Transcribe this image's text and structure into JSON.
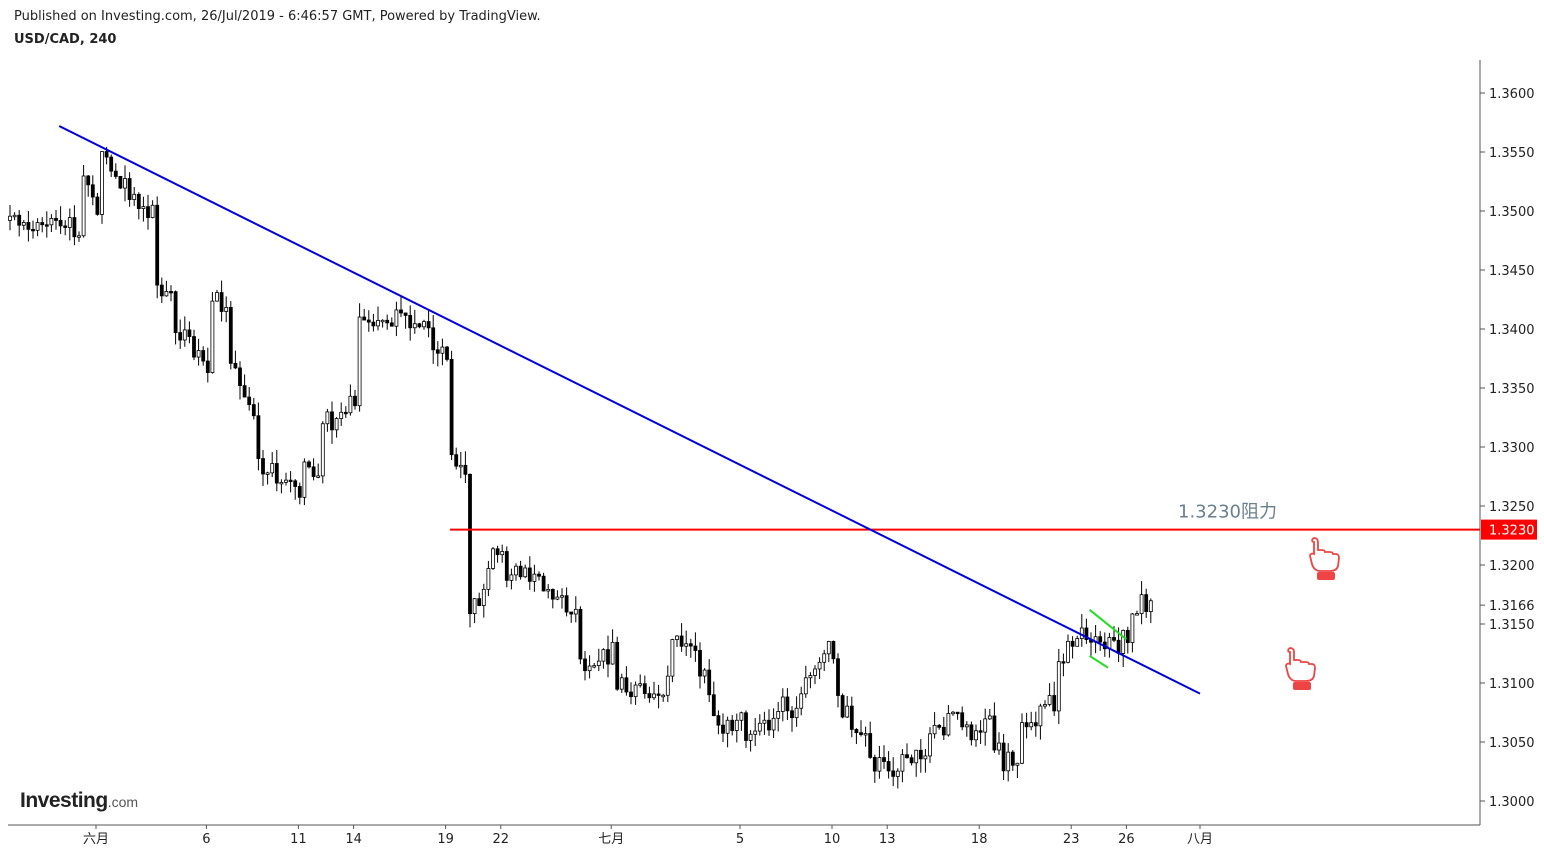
{
  "header": {
    "published": "Published on Investing.com, 26/Jul/2019 - 6:46:57 GMT, Powered by TradingView.",
    "symbol": "USD/CAD, 240"
  },
  "brand": {
    "name": "Investing",
    "suffix": ".com"
  },
  "chart_data": {
    "type": "candlestick",
    "y_axis": {
      "range": [
        1.2965,
        1.3645
      ],
      "ticks": [
        "1.3600",
        "1.3550",
        "1.3500",
        "1.3450",
        "1.3400",
        "1.3350",
        "1.3300",
        "1.3250",
        "1.3200",
        "1.3150",
        "1.3100",
        "1.3050",
        "1.3000"
      ]
    },
    "x_axis": {
      "ticks": [
        "六月",
        "6",
        "11",
        "14",
        "19",
        "22",
        "七月",
        "5",
        "10",
        "13",
        "18",
        "23",
        "26",
        "八月"
      ]
    },
    "last_price": "1.3166",
    "resistance": {
      "level": "1.3230",
      "label": "1.3230阻力",
      "color": "#ff0000"
    },
    "colors": {
      "trendline": "#0000e0",
      "resistance": "#ff0000",
      "pennant": "#22dd22",
      "hand_icon": "#ee4444",
      "candle_up": "#ffffff",
      "candle_down": "#000000"
    },
    "annotations": [
      {
        "type": "trendline",
        "from": [
          "2019-05-29",
          1.3572
        ],
        "to": [
          "2019-07-30",
          1.3091
        ]
      },
      {
        "type": "pennant-upper",
        "from": [
          "2019-07-24",
          1.3162
        ],
        "to": [
          "2019-07-26",
          1.3137
        ]
      },
      {
        "type": "pennant-lower",
        "from": [
          "2019-07-24",
          1.3123
        ],
        "to": [
          "2019-07-25",
          1.3113
        ]
      },
      {
        "type": "hand-icon",
        "near": [
          "2019-07-26",
          1.3198
        ]
      },
      {
        "type": "hand-icon",
        "near": [
          "2019-07-26",
          1.311
        ]
      }
    ],
    "path_anchors": [
      [
        "2019-05-30",
        1.3488
      ],
      [
        "2019-05-30",
        1.3535
      ],
      [
        "2019-05-31",
        1.3505
      ],
      [
        "2019-05-31",
        1.353
      ],
      [
        "2019-05-31",
        1.3565
      ],
      [
        "2019-06-01",
        1.353
      ],
      [
        "2019-06-03",
        1.35
      ],
      [
        "2019-06-03",
        1.3465
      ],
      [
        "2019-06-03",
        1.344
      ],
      [
        "2019-06-04",
        1.343
      ],
      [
        "2019-06-04",
        1.341
      ],
      [
        "2019-06-05",
        1.3385
      ],
      [
        "2019-06-06",
        1.337
      ],
      [
        "2019-06-06",
        1.3415
      ],
      [
        "2019-06-06",
        1.3425
      ],
      [
        "2019-06-07",
        1.342
      ],
      [
        "2019-06-07",
        1.339
      ],
      [
        "2019-06-07",
        1.3365
      ],
      [
        "2019-06-08",
        1.335
      ],
      [
        "2019-06-09",
        1.328
      ],
      [
        "2019-06-10",
        1.3275
      ],
      [
        "2019-06-10",
        1.327
      ],
      [
        "2019-06-11",
        1.3265
      ],
      [
        "2019-06-11",
        1.3255
      ],
      [
        "2019-06-11",
        1.3285
      ],
      [
        "2019-06-12",
        1.328
      ],
      [
        "2019-06-12",
        1.329
      ],
      [
        "2019-06-12",
        1.3325
      ],
      [
        "2019-06-13",
        1.332
      ],
      [
        "2019-06-13",
        1.331
      ],
      [
        "2019-06-13",
        1.333
      ],
      [
        "2019-06-14",
        1.334
      ],
      [
        "2019-06-14",
        1.336
      ],
      [
        "2019-06-14",
        1.3415
      ],
      [
        "2019-06-15",
        1.341
      ],
      [
        "2019-06-16",
        1.341
      ],
      [
        "2019-06-17",
        1.3405
      ],
      [
        "2019-06-18",
        1.341
      ],
      [
        "2019-06-18",
        1.3425
      ],
      [
        "2019-06-18",
        1.3395
      ],
      [
        "2019-06-19",
        1.338
      ],
      [
        "2019-06-19",
        1.3375
      ],
      [
        "2019-06-19",
        1.329
      ],
      [
        "2019-06-20",
        1.327
      ],
      [
        "2019-06-20",
        1.3225
      ],
      [
        "2019-06-20",
        1.316
      ],
      [
        "2019-06-21",
        1.3175
      ],
      [
        "2019-06-21",
        1.3195
      ],
      [
        "2019-06-22",
        1.3215
      ],
      [
        "2019-06-22",
        1.3195
      ],
      [
        "2019-06-23",
        1.319
      ],
      [
        "2019-06-24",
        1.3185
      ],
      [
        "2019-06-24",
        1.3175
      ],
      [
        "2019-06-25",
        1.317
      ],
      [
        "2019-06-26",
        1.316
      ],
      [
        "2019-06-26",
        1.3115
      ],
      [
        "2019-06-27",
        1.3125
      ],
      [
        "2019-06-28",
        1.3125
      ],
      [
        "2019-06-28",
        1.31
      ],
      [
        "2019-06-29",
        1.3095
      ],
      [
        "2019-07-01",
        1.31
      ],
      [
        "2019-07-01",
        1.3125
      ],
      [
        "2019-07-02",
        1.314
      ],
      [
        "2019-07-02",
        1.3125
      ],
      [
        "2019-07-03",
        1.311
      ],
      [
        "2019-07-03",
        1.309
      ],
      [
        "2019-07-04",
        1.3065
      ],
      [
        "2019-07-04",
        1.3055
      ],
      [
        "2019-07-05",
        1.3075
      ],
      [
        "2019-07-05",
        1.305
      ],
      [
        "2019-07-06",
        1.3065
      ],
      [
        "2019-07-07",
        1.3075
      ],
      [
        "2019-07-07",
        1.309
      ],
      [
        "2019-07-08",
        1.307
      ],
      [
        "2019-07-08",
        1.3055
      ],
      [
        "2019-07-08",
        1.309
      ],
      [
        "2019-07-09",
        1.3115
      ],
      [
        "2019-07-09",
        1.3125
      ],
      [
        "2019-07-10",
        1.313
      ],
      [
        "2019-07-10",
        1.3125
      ],
      [
        "2019-07-10",
        1.309
      ],
      [
        "2019-07-11",
        1.307
      ],
      [
        "2019-07-11",
        1.306
      ],
      [
        "2019-07-12",
        1.3045
      ],
      [
        "2019-07-12",
        1.306
      ],
      [
        "2019-07-12",
        1.303
      ],
      [
        "2019-07-13",
        1.303
      ],
      [
        "2019-07-14",
        1.303
      ],
      [
        "2019-07-15",
        1.3045
      ],
      [
        "2019-07-15",
        1.3055
      ],
      [
        "2019-07-16",
        1.306
      ],
      [
        "2019-07-16",
        1.3085
      ],
      [
        "2019-07-17",
        1.307
      ],
      [
        "2019-07-17",
        1.3055
      ],
      [
        "2019-07-18",
        1.3055
      ],
      [
        "2019-07-18",
        1.304
      ],
      [
        "2019-07-18",
        1.3085
      ],
      [
        "2019-07-19",
        1.304
      ],
      [
        "2019-07-19",
        1.303
      ],
      [
        "2019-07-20",
        1.3035
      ],
      [
        "2019-07-20",
        1.3055
      ],
      [
        "2019-07-21",
        1.307
      ],
      [
        "2019-07-22",
        1.3085
      ],
      [
        "2019-07-22",
        1.311
      ],
      [
        "2019-07-22",
        1.3125
      ],
      [
        "2019-07-23",
        1.313
      ],
      [
        "2019-07-23",
        1.314
      ],
      [
        "2019-07-24",
        1.314
      ],
      [
        "2019-07-24",
        1.3135
      ],
      [
        "2019-07-24",
        1.313
      ],
      [
        "2019-07-25",
        1.3135
      ],
      [
        "2019-07-25",
        1.314
      ],
      [
        "2019-07-25",
        1.313
      ],
      [
        "2019-07-26",
        1.314
      ],
      [
        "2019-07-26",
        1.316
      ],
      [
        "2019-07-26",
        1.3163
      ],
      [
        "2019-07-27",
        1.3166
      ]
    ]
  }
}
